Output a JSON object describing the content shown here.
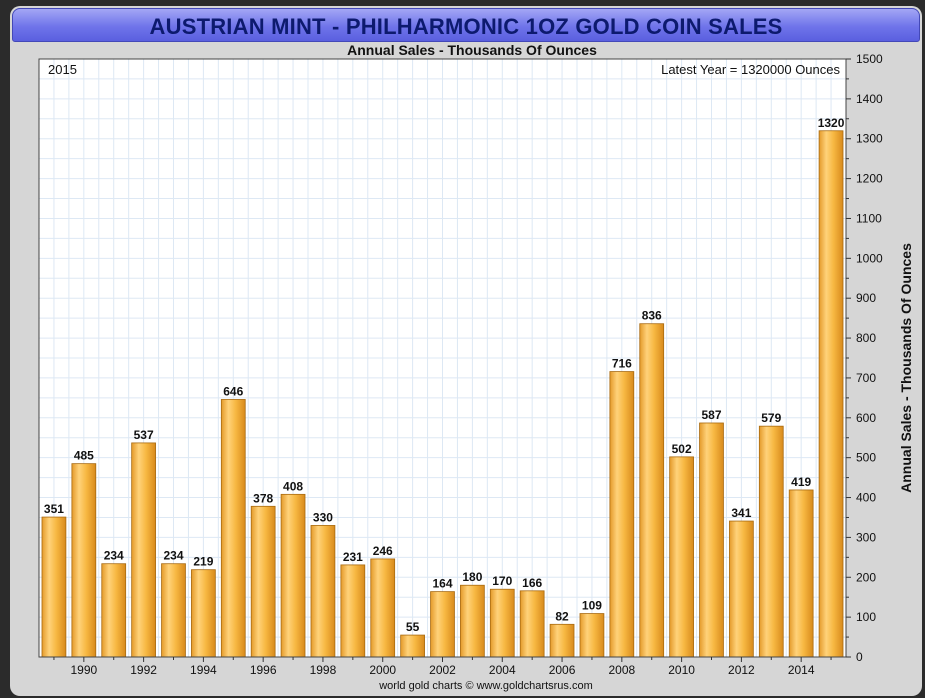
{
  "header": {
    "title": "AUSTRIAN MINT - PHILHARMONIC 1OZ GOLD COIN SALES"
  },
  "chart_data": {
    "type": "bar",
    "title": "AUSTRIAN MINT - PHILHARMONIC 1OZ GOLD COIN SALES",
    "subtitle": "Annual Sales - Thousands Of Ounces",
    "ylabel": "Annual Sales - Thousands Of Ounces",
    "xlabel": "",
    "corner_left": "2015",
    "corner_right": "Latest Year = 1320000 Ounces",
    "footer": "world gold charts © www.goldchartsrus.com",
    "categories": [
      "1989",
      "1990",
      "1991",
      "1992",
      "1993",
      "1994",
      "1995",
      "1996",
      "1997",
      "1998",
      "1999",
      "2000",
      "2001",
      "2002",
      "2003",
      "2004",
      "2005",
      "2006",
      "2007",
      "2008",
      "2009",
      "2010",
      "2011",
      "2012",
      "2013",
      "2014",
      "2015"
    ],
    "values": [
      351,
      485,
      234,
      537,
      234,
      219,
      646,
      378,
      408,
      330,
      231,
      246,
      55,
      164,
      180,
      170,
      166,
      82,
      109,
      716,
      836,
      502,
      587,
      341,
      579,
      419,
      1320
    ],
    "x_tick_labels": [
      "1990",
      "1992",
      "1994",
      "1996",
      "1998",
      "2000",
      "2002",
      "2004",
      "2006",
      "2008",
      "2010",
      "2012",
      "2014"
    ],
    "y_ticks": [
      0,
      100,
      200,
      300,
      400,
      500,
      600,
      700,
      800,
      900,
      1000,
      1100,
      1200,
      1300,
      1400,
      1500
    ],
    "ylim": [
      0,
      1500
    ],
    "y_axis_side": "right",
    "grid": true,
    "bar_color": "#f5b942",
    "plot_background": "#ffffff",
    "grid_color": "#dde8f4"
  }
}
